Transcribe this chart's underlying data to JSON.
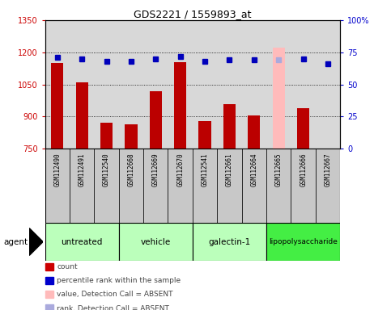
{
  "title": "GDS2221 / 1559893_at",
  "samples": [
    "GSM112490",
    "GSM112491",
    "GSM112540",
    "GSM112668",
    "GSM112669",
    "GSM112670",
    "GSM112541",
    "GSM112661",
    "GSM112664",
    "GSM112665",
    "GSM112666",
    "GSM112667"
  ],
  "count_values": [
    1150,
    1060,
    870,
    865,
    1020,
    1155,
    880,
    960,
    905,
    1220,
    940,
    752
  ],
  "percentile_values": [
    71,
    70,
    68,
    68,
    70,
    72,
    68,
    69,
    69,
    69,
    70,
    66
  ],
  "absent_flags": [
    false,
    false,
    false,
    false,
    false,
    false,
    false,
    false,
    false,
    true,
    false,
    false
  ],
  "ylim_left": [
    750,
    1350
  ],
  "ylim_right": [
    0,
    100
  ],
  "yticks_left": [
    750,
    900,
    1050,
    1200,
    1350
  ],
  "ytick_labels_right": [
    "0",
    "25",
    "50",
    "75",
    "100%"
  ],
  "yticks_right": [
    0,
    25,
    50,
    75,
    100
  ],
  "groups": [
    {
      "label": "untreated",
      "start": 0,
      "end": 3,
      "color": "#bbffbb"
    },
    {
      "label": "vehicle",
      "start": 3,
      "end": 6,
      "color": "#bbffbb"
    },
    {
      "label": "galectin-1",
      "start": 6,
      "end": 9,
      "color": "#bbffbb"
    },
    {
      "label": "lipopolysaccharide",
      "start": 9,
      "end": 12,
      "color": "#44ee44"
    }
  ],
  "bar_color_normal": "#bb0000",
  "bar_color_absent": "#ffbbbb",
  "dot_color_normal": "#0000bb",
  "dot_color_absent": "#aaaadd",
  "bar_width": 0.5,
  "plot_bg_color": "#d8d8d8",
  "label_bg_color": "#c8c8c8",
  "ylabel_left_color": "#cc0000",
  "ylabel_right_color": "#0000cc",
  "legend_items": [
    {
      "label": "count",
      "color": "#cc0000"
    },
    {
      "label": "percentile rank within the sample",
      "color": "#0000cc"
    },
    {
      "label": "value, Detection Call = ABSENT",
      "color": "#ffbbbb"
    },
    {
      "label": "rank, Detection Call = ABSENT",
      "color": "#aaaadd"
    }
  ]
}
